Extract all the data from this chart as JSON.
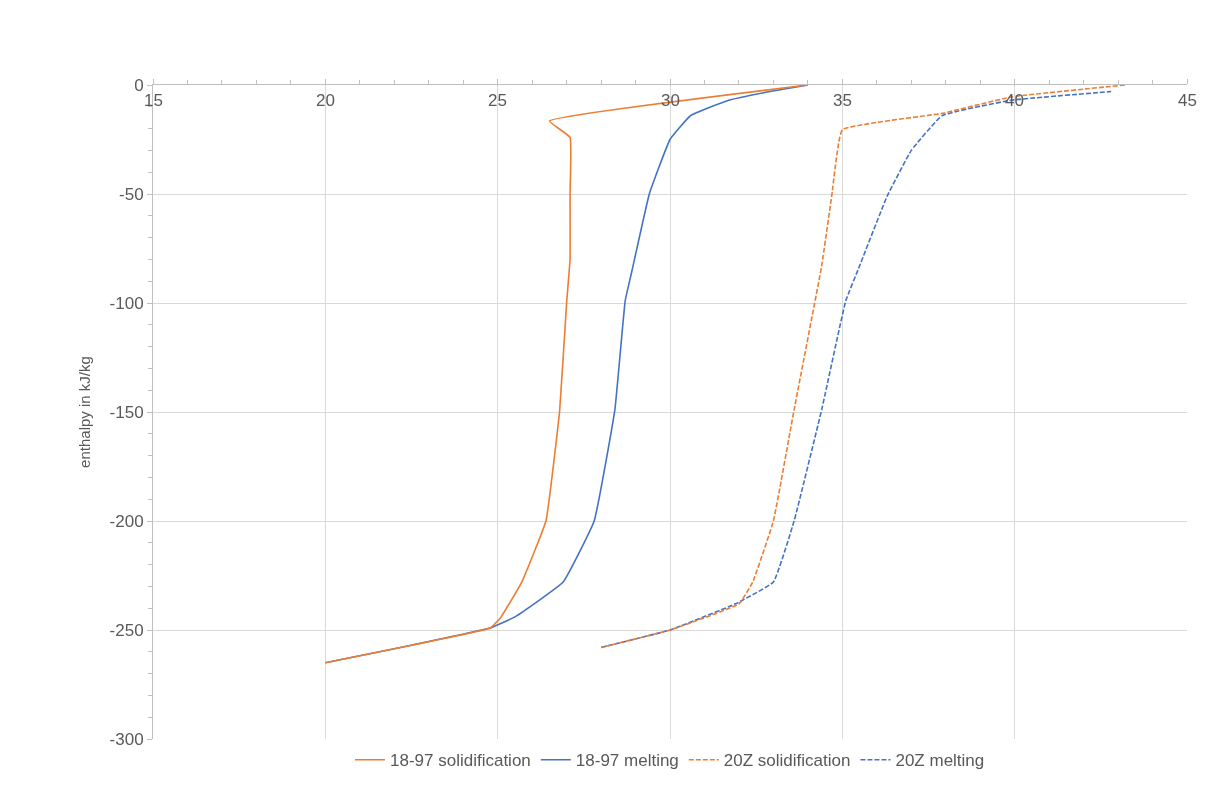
{
  "chart_data": {
    "type": "line",
    "ylabel": "enthalpy in kJ/kg",
    "xlim": [
      15,
      45
    ],
    "xticks": [
      15,
      20,
      25,
      30,
      35,
      40,
      45
    ],
    "ylim": [
      -300,
      0
    ],
    "yticks": [
      -300,
      -250,
      -200,
      -150,
      -100,
      -50,
      0
    ],
    "grid": true,
    "legend": "bottom",
    "marker": "none",
    "series": [
      {
        "name": "18-97 solidification",
        "color": "#ed7d31",
        "line_style": "solid",
        "x": [
          34,
          26.5,
          27.1,
          27.1,
          27.1,
          27.0,
          26.8,
          26.4,
          25.7,
          25.1,
          24.8,
          22.5,
          20
        ],
        "values": [
          0,
          -16.5,
          -24,
          -50,
          -80,
          -100,
          -149,
          -200,
          -228,
          -244,
          -249,
          -257,
          -265
        ]
      },
      {
        "name": "18-97 melting",
        "color": "#4472c4",
        "line_style": "solid",
        "x": [
          20,
          22.5,
          24.8,
          25.5,
          26.9,
          27.8,
          28.4,
          28.7,
          28.9,
          29.4,
          30.0,
          30.6,
          31.7,
          32.9,
          34
        ],
        "values": [
          -265,
          -257,
          -249,
          -244,
          -228,
          -200,
          -149,
          -99,
          -85,
          -50,
          -25,
          -14,
          -7,
          -3,
          0
        ]
      },
      {
        "name": "20Z solidification",
        "color": "#ed7d31",
        "line_style": "dashed",
        "x": [
          43.2,
          39.9,
          37.9,
          35.0,
          34.7,
          34.4,
          33.6,
          33.0,
          32.4,
          32.0,
          30.0,
          28.0
        ],
        "values": [
          0,
          -5.5,
          -13,
          -20.6,
          -50,
          -83,
          -149,
          -200,
          -228,
          -238,
          -250,
          -258
        ]
      },
      {
        "name": "20Z melting",
        "color": "#4472c4",
        "line_style": "dashed",
        "x": [
          28.0,
          30.0,
          31.9,
          33.0,
          33.6,
          34.4,
          35.1,
          35.5,
          36.3,
          37.0,
          37.9,
          39.9,
          42.8
        ],
        "values": [
          -258,
          -250,
          -238,
          -228,
          -200,
          -149,
          -99,
          -83,
          -51,
          -30,
          -14,
          -7,
          -3
        ]
      }
    ]
  }
}
